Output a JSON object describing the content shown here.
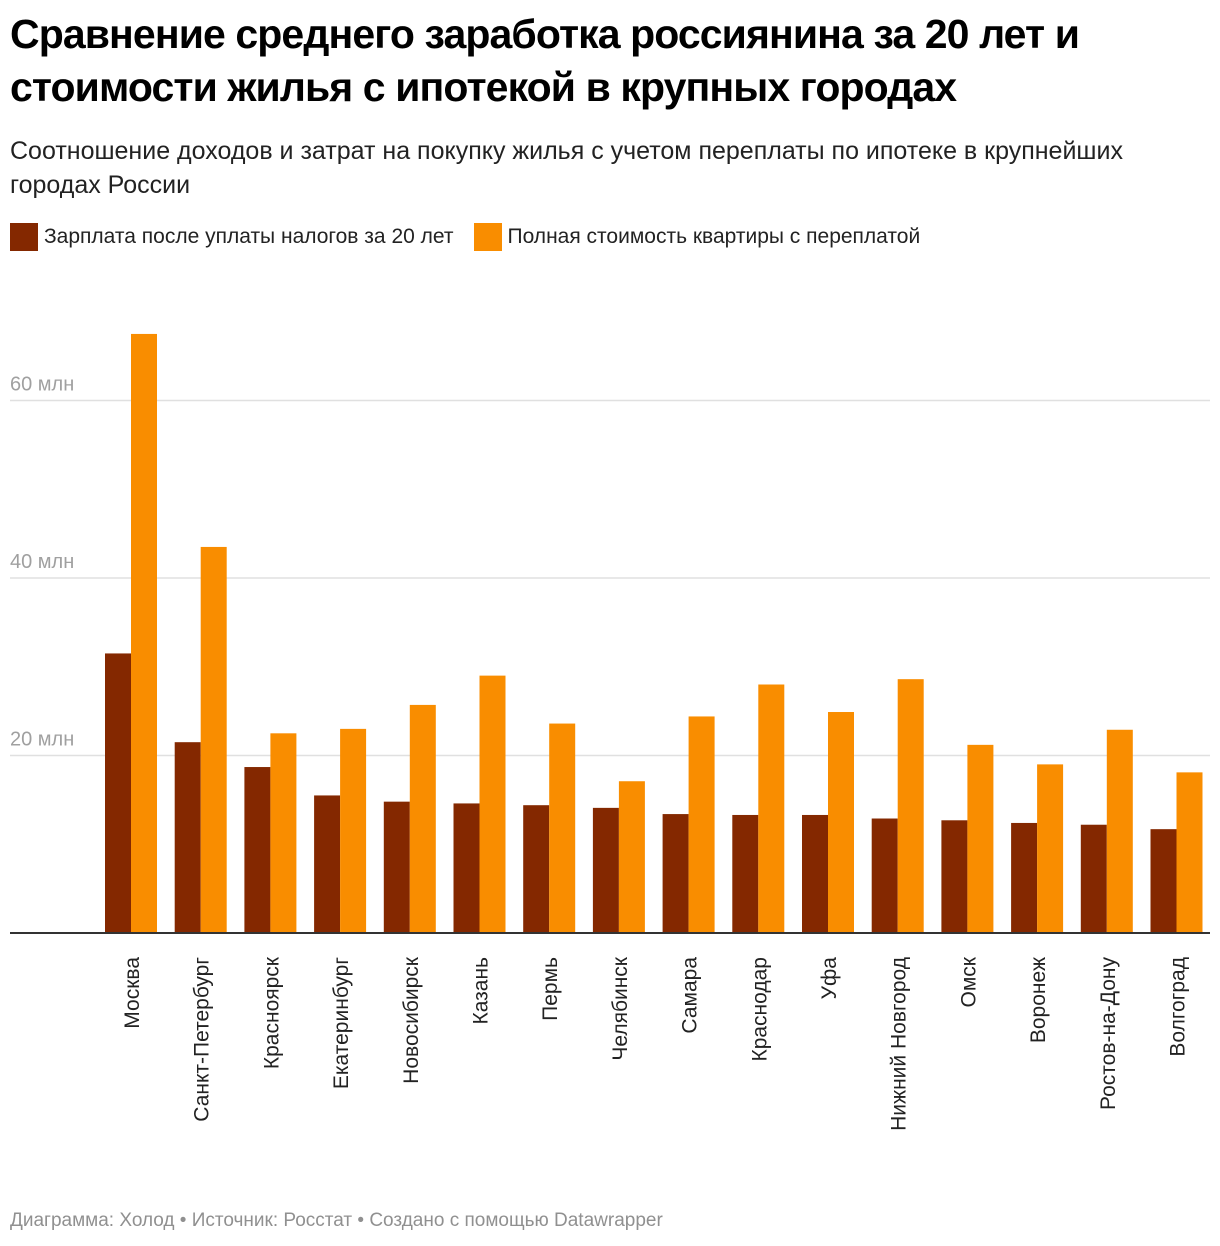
{
  "title": "Сравнение среднего заработка россиянина за 20 лет и стоимости жилья с ипотекой в крупных городах",
  "subtitle": "Соотношение доходов и затрат на покупку жилья с учетом переплаты по ипотеке в крупнейших городах России",
  "footer": "Диаграмма: Холод • Источник: Росстат • Создано с помощью Datawrapper",
  "colors": {
    "salary": "#842800",
    "apartment": "#f98d00",
    "grid": "#e0e0e0",
    "axis_text": "#a0a0a0"
  },
  "legend": [
    {
      "name": "Зарплата после уплаты налогов за 20 лет",
      "color": "#842800"
    },
    {
      "name": "Полная стоимость квартиры с переплатой",
      "color": "#f98d00"
    }
  ],
  "chart_data": {
    "type": "bar",
    "title": "Сравнение среднего заработка россиянина за 20 лет и стоимости жилья с ипотекой в крупных городах",
    "subtitle": "Соотношение доходов и затрат на покупку жилья с учетом переплаты по ипотеке в крупнейших городах России",
    "xlabel": "",
    "ylabel": "",
    "ylim": [
      0,
      69
    ],
    "yticks": [
      20,
      40,
      60
    ],
    "ytick_labels": [
      "20 млн",
      "40 млн",
      "60 млн"
    ],
    "grid": true,
    "legend_position": "top-left",
    "categories": [
      "Москва",
      "Санкт-Петербург",
      "Красноярск",
      "Екатеринбург",
      "Новосибирск",
      "Казань",
      "Пермь",
      "Челябинск",
      "Самара",
      "Краснодар",
      "Уфа",
      "Нижний Новгород",
      "Омск",
      "Воронеж",
      "Ростов-на-Дону",
      "Волгоград"
    ],
    "series": [
      {
        "name": "Зарплата после уплаты налогов за 20 лет",
        "values": [
          31.5,
          21.5,
          18.7,
          15.5,
          14.8,
          14.6,
          14.4,
          14.1,
          13.4,
          13.3,
          13.3,
          12.9,
          12.7,
          12.4,
          12.2,
          11.7
        ]
      },
      {
        "name": "Полная стоимость квартиры с переплатой",
        "values": [
          67.5,
          43.5,
          22.5,
          23.0,
          25.7,
          29.0,
          23.6,
          17.1,
          24.4,
          28.0,
          24.9,
          28.6,
          21.2,
          19.0,
          22.9,
          18.1
        ]
      }
    ]
  }
}
